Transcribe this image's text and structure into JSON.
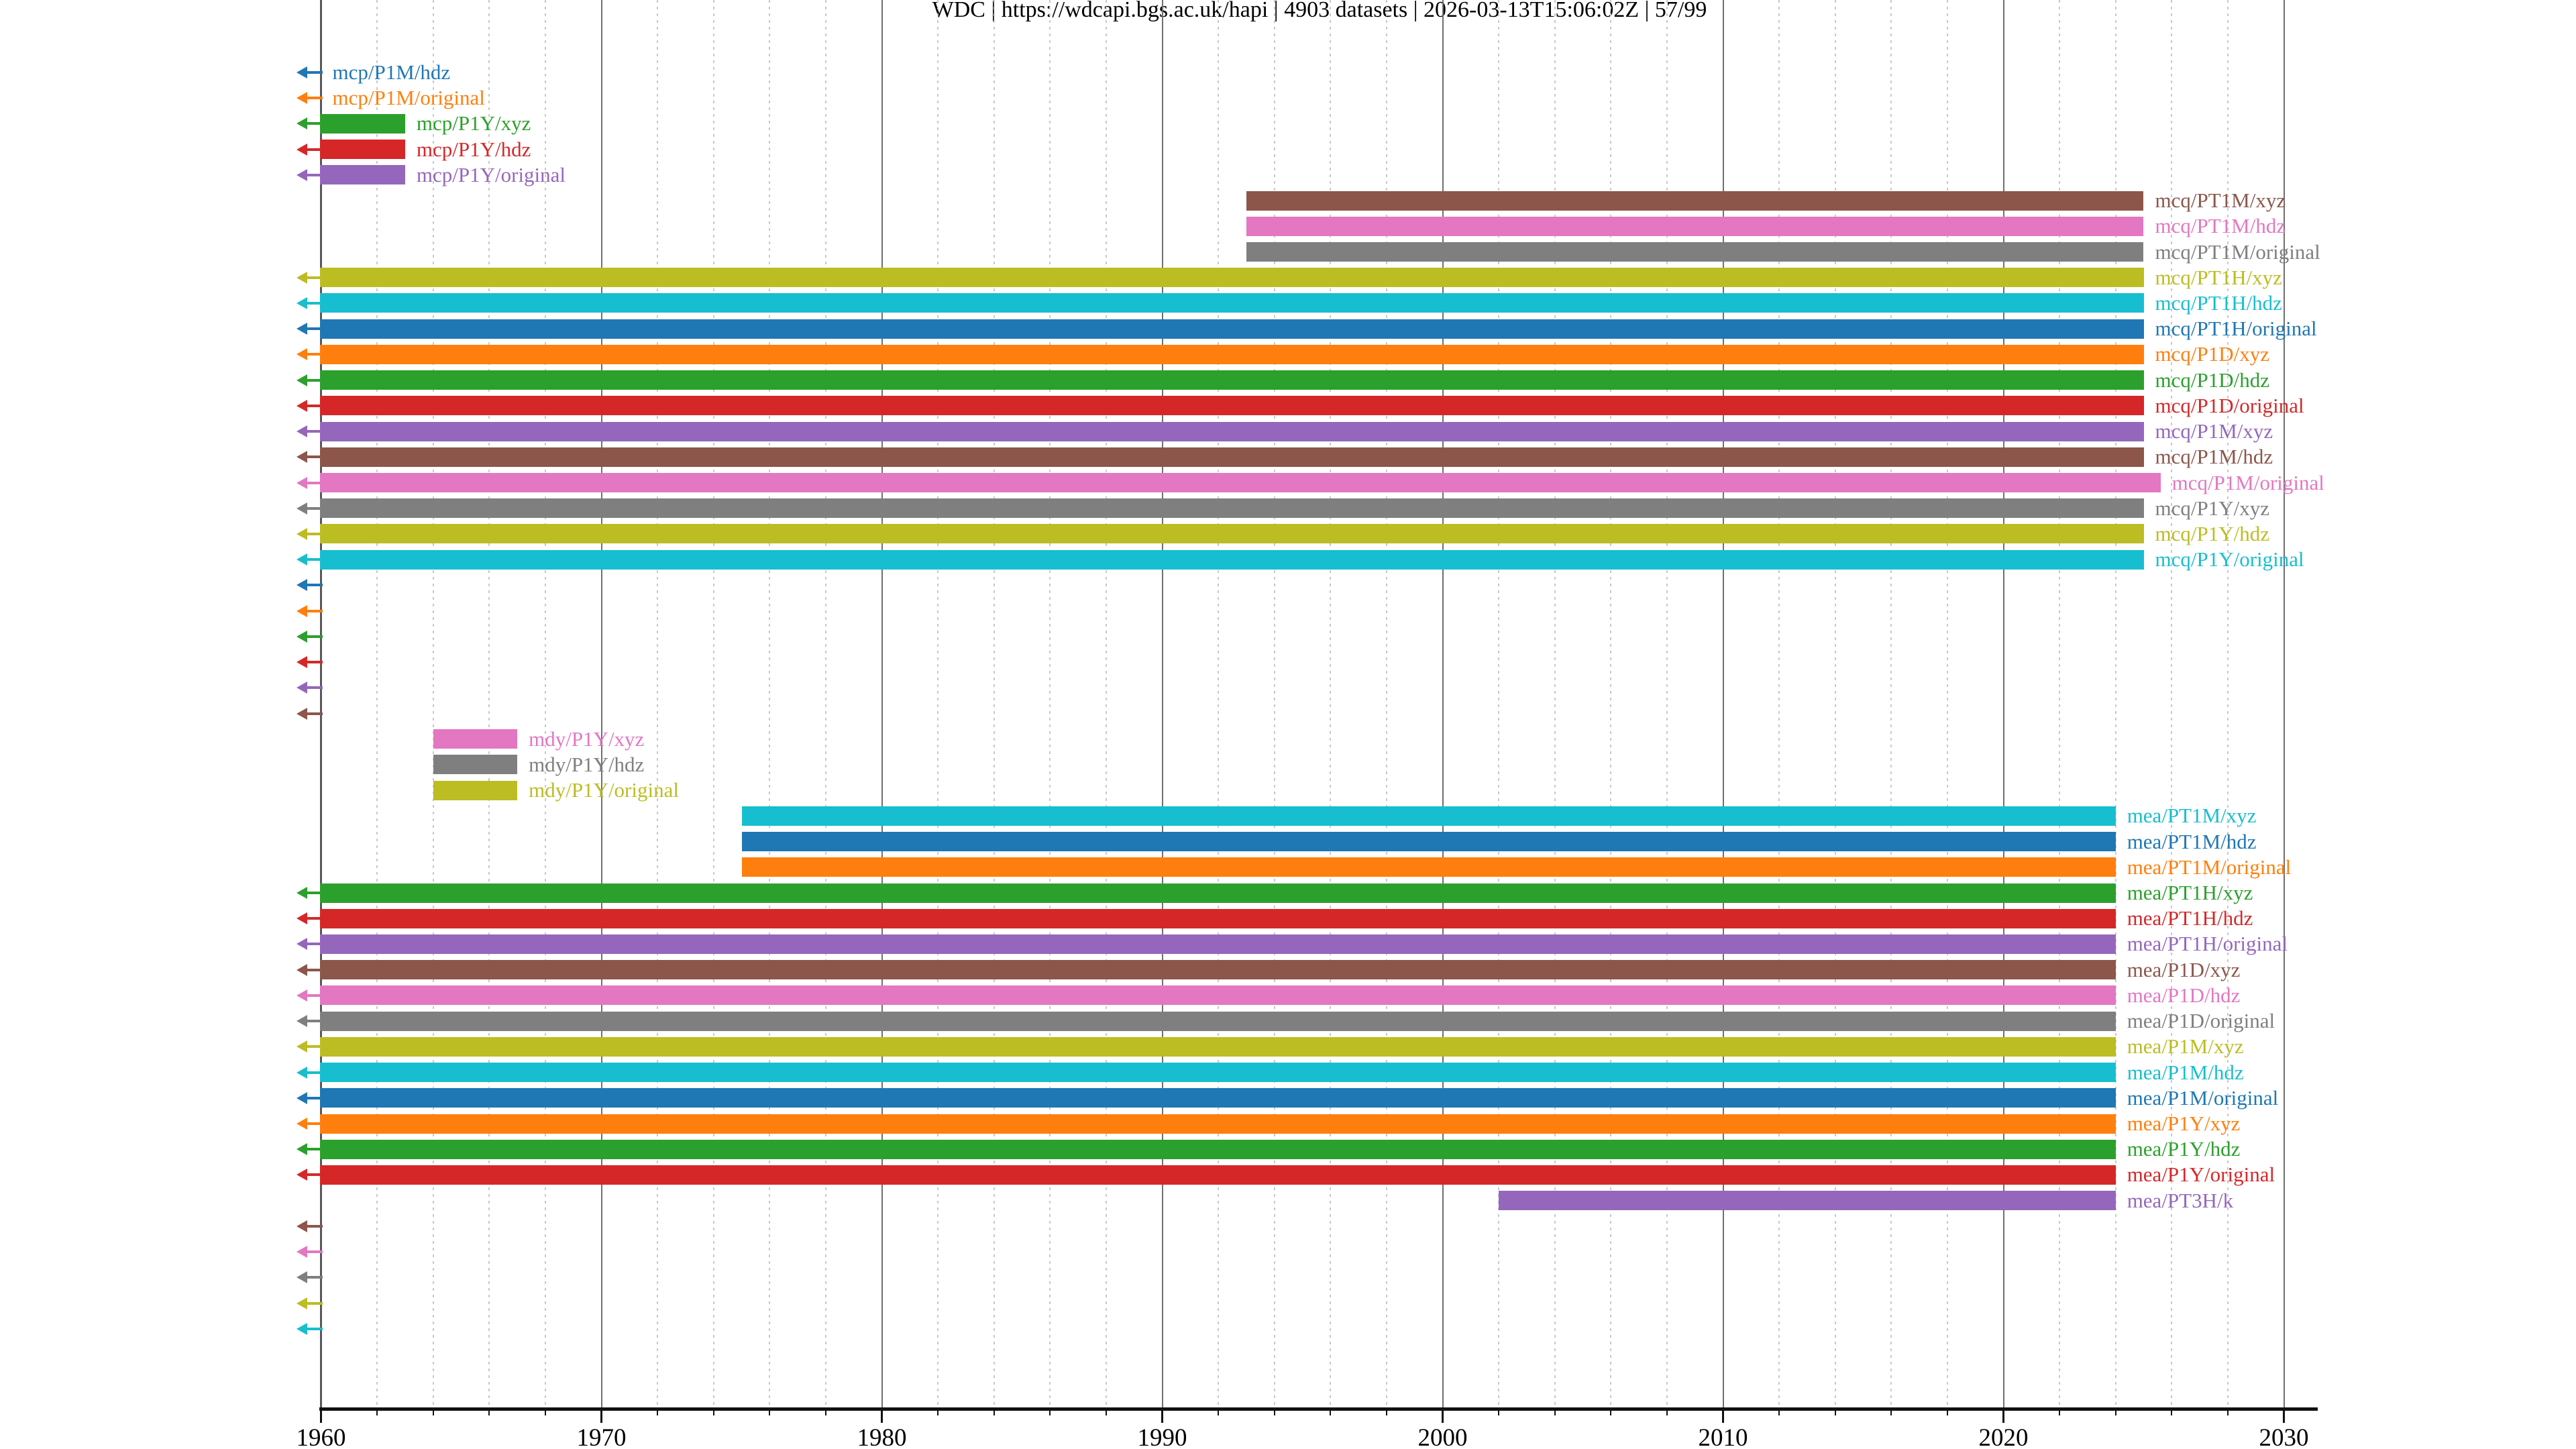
{
  "title": "WDC | https://wdcapi.bgs.ac.uk/hapi | 4903 datasets | 2026-03-13T15:06:02Z | 57/99",
  "title_parts": {
    "server_name": "WDC",
    "server_url": "https://wdcapi.bgs.ac.uk/hapi",
    "dataset_count": "4903 datasets",
    "timestamp": "2026-03-13T15:06:02Z",
    "page": "57/99"
  },
  "palette": {
    "blue": "#1f77b4",
    "orange": "#ff7f0e",
    "green": "#2ca02c",
    "red": "#d62728",
    "purple": "#9467bd",
    "brown": "#8c564b",
    "pink": "#e377c2",
    "gray": "#7f7f7f",
    "olive": "#bcbd22",
    "cyan": "#17becf"
  },
  "chart_data": {
    "type": "bar",
    "subtype": "gantt-timeline (dataset time coverage)",
    "title": "WDC | https://wdcapi.bgs.ac.uk/hapi | 4903 datasets | 2026-03-13T15:06:02Z | 57/99",
    "xlabel": "",
    "ylabel": "",
    "x_axis": {
      "min": 1959.9,
      "max": 2031.3,
      "major_ticks": [
        1960,
        1970,
        1980,
        1990,
        2000,
        2010,
        2020,
        2030
      ],
      "tick_labels": [
        "1960",
        "1970",
        "1980",
        "1990",
        "2000",
        "2010",
        "2020",
        "2030"
      ],
      "minor_tick_step_years": 2,
      "major_grid": "solid gray",
      "minor_grid": "dotted light-gray"
    },
    "legend": "none (labels drawn beside bars, colored to match)",
    "note": "Rows with a left arrow extend before 1960; rows with only an arrow and no bar end before 1960. start=null means clipped at left edge.",
    "rows": [
      {
        "label": "mcp/P1M/hdz",
        "color": "blue",
        "start": null,
        "end": null,
        "clipped_left": true
      },
      {
        "label": "mcp/P1M/original",
        "color": "orange",
        "start": null,
        "end": null,
        "clipped_left": true
      },
      {
        "label": "mcp/P1Y/xyz",
        "color": "green",
        "start": null,
        "end": 1963,
        "clipped_left": true
      },
      {
        "label": "mcp/P1Y/hdz",
        "color": "red",
        "start": null,
        "end": 1963,
        "clipped_left": true
      },
      {
        "label": "mcp/P1Y/original",
        "color": "purple",
        "start": null,
        "end": 1963,
        "clipped_left": true
      },
      {
        "label": "mcq/PT1M/xyz",
        "color": "brown",
        "start": 1993,
        "end": 2025,
        "clipped_left": false
      },
      {
        "label": "mcq/PT1M/hdz",
        "color": "pink",
        "start": 1993,
        "end": 2025,
        "clipped_left": false
      },
      {
        "label": "mcq/PT1M/original",
        "color": "gray",
        "start": 1993,
        "end": 2025,
        "clipped_left": false
      },
      {
        "label": "mcq/PT1H/xyz",
        "color": "olive",
        "start": null,
        "end": 2025,
        "clipped_left": true
      },
      {
        "label": "mcq/PT1H/hdz",
        "color": "cyan",
        "start": null,
        "end": 2025,
        "clipped_left": true
      },
      {
        "label": "mcq/PT1H/original",
        "color": "blue",
        "start": null,
        "end": 2025,
        "clipped_left": true
      },
      {
        "label": "mcq/P1D/xyz",
        "color": "orange",
        "start": null,
        "end": 2025,
        "clipped_left": true
      },
      {
        "label": "mcq/P1D/hdz",
        "color": "green",
        "start": null,
        "end": 2025,
        "clipped_left": true
      },
      {
        "label": "mcq/P1D/original",
        "color": "red",
        "start": null,
        "end": 2025,
        "clipped_left": true
      },
      {
        "label": "mcq/P1M/xyz",
        "color": "purple",
        "start": null,
        "end": 2025,
        "clipped_left": true
      },
      {
        "label": "mcq/P1M/hdz",
        "color": "brown",
        "start": null,
        "end": 2025,
        "clipped_left": true
      },
      {
        "label": "mcq/P1M/original",
        "color": "pink",
        "start": null,
        "end": 2025.6,
        "clipped_left": true
      },
      {
        "label": "mcq/P1Y/xyz",
        "color": "gray",
        "start": null,
        "end": 2025,
        "clipped_left": true
      },
      {
        "label": "mcq/P1Y/hdz",
        "color": "olive",
        "start": null,
        "end": 2025,
        "clipped_left": true
      },
      {
        "label": "mcq/P1Y/original",
        "color": "cyan",
        "start": null,
        "end": 2025,
        "clipped_left": true
      },
      {
        "label": "",
        "color": "blue",
        "start": null,
        "end": null,
        "clipped_left": true
      },
      {
        "label": "",
        "color": "orange",
        "start": null,
        "end": null,
        "clipped_left": true
      },
      {
        "label": "",
        "color": "green",
        "start": null,
        "end": null,
        "clipped_left": true
      },
      {
        "label": "",
        "color": "red",
        "start": null,
        "end": null,
        "clipped_left": true
      },
      {
        "label": "",
        "color": "purple",
        "start": null,
        "end": null,
        "clipped_left": true
      },
      {
        "label": "",
        "color": "brown",
        "start": null,
        "end": null,
        "clipped_left": true
      },
      {
        "label": "mdy/P1Y/xyz",
        "color": "pink",
        "start": 1964,
        "end": 1967,
        "clipped_left": false
      },
      {
        "label": "mdy/P1Y/hdz",
        "color": "gray",
        "start": 1964,
        "end": 1967,
        "clipped_left": false
      },
      {
        "label": "mdy/P1Y/original",
        "color": "olive",
        "start": 1964,
        "end": 1967,
        "clipped_left": false
      },
      {
        "label": "mea/PT1M/xyz",
        "color": "cyan",
        "start": 1975,
        "end": 2024,
        "clipped_left": false
      },
      {
        "label": "mea/PT1M/hdz",
        "color": "blue",
        "start": 1975,
        "end": 2024,
        "clipped_left": false
      },
      {
        "label": "mea/PT1M/original",
        "color": "orange",
        "start": 1975,
        "end": 2024,
        "clipped_left": false
      },
      {
        "label": "mea/PT1H/xyz",
        "color": "green",
        "start": null,
        "end": 2024,
        "clipped_left": true
      },
      {
        "label": "mea/PT1H/hdz",
        "color": "red",
        "start": null,
        "end": 2024,
        "clipped_left": true
      },
      {
        "label": "mea/PT1H/original",
        "color": "purple",
        "start": null,
        "end": 2024,
        "clipped_left": true
      },
      {
        "label": "mea/P1D/xyz",
        "color": "brown",
        "start": null,
        "end": 2024,
        "clipped_left": true
      },
      {
        "label": "mea/P1D/hdz",
        "color": "pink",
        "start": null,
        "end": 2024,
        "clipped_left": true
      },
      {
        "label": "mea/P1D/original",
        "color": "gray",
        "start": null,
        "end": 2024,
        "clipped_left": true
      },
      {
        "label": "mea/P1M/xyz",
        "color": "olive",
        "start": null,
        "end": 2024,
        "clipped_left": true
      },
      {
        "label": "mea/P1M/hdz",
        "color": "cyan",
        "start": null,
        "end": 2024,
        "clipped_left": true
      },
      {
        "label": "mea/P1M/original",
        "color": "blue",
        "start": null,
        "end": 2024,
        "clipped_left": true
      },
      {
        "label": "mea/P1Y/xyz",
        "color": "orange",
        "start": null,
        "end": 2024,
        "clipped_left": true
      },
      {
        "label": "mea/P1Y/hdz",
        "color": "green",
        "start": null,
        "end": 2024,
        "clipped_left": true
      },
      {
        "label": "mea/P1Y/original",
        "color": "red",
        "start": null,
        "end": 2024,
        "clipped_left": true
      },
      {
        "label": "mea/PT3H/k",
        "color": "purple",
        "start": 2002,
        "end": 2024,
        "clipped_left": false
      },
      {
        "label": "",
        "color": "brown",
        "start": null,
        "end": null,
        "clipped_left": true
      },
      {
        "label": "",
        "color": "pink",
        "start": null,
        "end": null,
        "clipped_left": true
      },
      {
        "label": "",
        "color": "gray",
        "start": null,
        "end": null,
        "clipped_left": true
      },
      {
        "label": "",
        "color": "olive",
        "start": null,
        "end": null,
        "clipped_left": true
      },
      {
        "label": "",
        "color": "cyan",
        "start": null,
        "end": null,
        "clipped_left": true
      }
    ]
  }
}
